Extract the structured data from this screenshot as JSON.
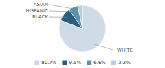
{
  "chart_data": {
    "type": "pie",
    "categories": [
      "WHITE",
      "BLACK",
      "HISPANIC",
      "ASIAN"
    ],
    "values": [
      80.7,
      9.5,
      6.6,
      3.2
    ],
    "value_labels": [
      "80.7%",
      "9.5%",
      "6.6%",
      "3.2%"
    ],
    "colors": [
      "#cfdce8",
      "#2a5e7c",
      "#5b93b0",
      "#b8cfd9"
    ],
    "legend": "bottom"
  }
}
